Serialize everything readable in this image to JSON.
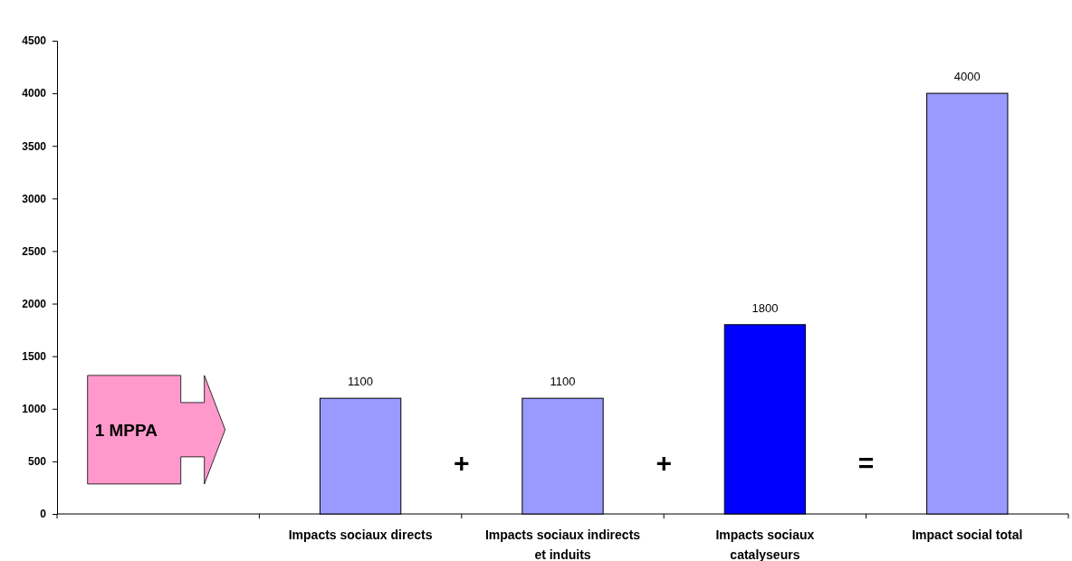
{
  "chart_data": {
    "type": "bar",
    "categories": [
      null,
      "Impacts sociaux directs",
      "Impacts sociaux indirects et induits",
      "Impacts sociaux catalyseurs",
      "Impact social total"
    ],
    "values": [
      null,
      1100,
      1100,
      1800,
      4000
    ],
    "colors": [
      null,
      "#9999ff",
      "#9999ff",
      "#0000ff",
      "#9999ff"
    ],
    "ylim": [
      0,
      4500
    ],
    "yticks": [
      0,
      500,
      1000,
      1500,
      2000,
      2500,
      3000,
      3500,
      4000,
      4500
    ],
    "data_labels": true,
    "annotations": [
      "1 MPPA",
      "+",
      "+",
      "="
    ]
  }
}
